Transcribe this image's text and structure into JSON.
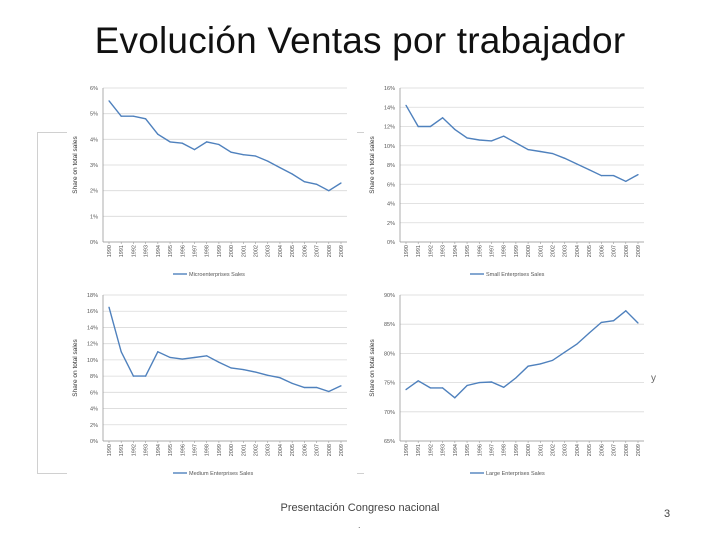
{
  "title": "Evolución Ventas por trabajador",
  "footer": {
    "text": "Presentación Congreso nacional",
    "dot": ".",
    "page_number": "3",
    "edge_mark": "y"
  },
  "colors": {
    "line": "#4f81bd",
    "grid": "#d9d9d9",
    "axis_text": "#555555"
  },
  "chart_data": [
    {
      "type": "line",
      "id": "micro",
      "ylabel": "Share on total sales",
      "legend": "Microenterprises Sales",
      "ylim": [
        0,
        6
      ],
      "yticks": [
        "0%",
        "1%",
        "2%",
        "3%",
        "4%",
        "5%",
        "6%"
      ],
      "x": [
        "1990",
        "1991",
        "1992",
        "1993",
        "1994",
        "1995",
        "1996",
        "1997",
        "1998",
        "1999",
        "2000",
        "2001",
        "2002",
        "2003",
        "2004",
        "2005",
        "2006",
        "2007",
        "2008",
        "2009"
      ],
      "series": [
        {
          "name": "Microenterprises Sales",
          "values": [
            5.5,
            4.9,
            4.9,
            4.8,
            4.2,
            3.9,
            3.85,
            3.6,
            3.9,
            3.8,
            3.5,
            3.4,
            3.35,
            3.15,
            2.9,
            2.65,
            2.35,
            2.25,
            2.0,
            2.3
          ]
        }
      ]
    },
    {
      "type": "line",
      "id": "small",
      "ylabel": "Share on total sales",
      "legend": "Small Enterprises Sales",
      "ylim": [
        0,
        16
      ],
      "yticks": [
        "0%",
        "2%",
        "4%",
        "6%",
        "8%",
        "10%",
        "12%",
        "14%",
        "16%"
      ],
      "x": [
        "1990",
        "1991",
        "1992",
        "1993",
        "1994",
        "1995",
        "1996",
        "1997",
        "1998",
        "1999",
        "2000",
        "2001",
        "2002",
        "2003",
        "2004",
        "2005",
        "2006",
        "2007",
        "2008",
        "2009"
      ],
      "series": [
        {
          "name": "Small Enterprises Sales",
          "values": [
            14.2,
            12.0,
            12.0,
            12.9,
            11.7,
            10.8,
            10.6,
            10.5,
            11.0,
            10.3,
            9.6,
            9.4,
            9.2,
            8.7,
            8.1,
            7.5,
            6.9,
            6.9,
            6.3,
            7.0
          ]
        }
      ]
    },
    {
      "type": "line",
      "id": "medium",
      "ylabel": "Share on total sales",
      "legend": "Medium Enterprises Sales",
      "ylim": [
        0,
        18
      ],
      "yticks": [
        "0%",
        "2%",
        "4%",
        "6%",
        "8%",
        "10%",
        "12%",
        "14%",
        "16%",
        "18%"
      ],
      "x": [
        "1990",
        "1991",
        "1992",
        "1993",
        "1994",
        "1995",
        "1996",
        "1997",
        "1998",
        "1999",
        "2000",
        "2001",
        "2002",
        "2003",
        "2004",
        "2005",
        "2006",
        "2007",
        "2008",
        "2009"
      ],
      "series": [
        {
          "name": "Medium Enterprises Sales",
          "values": [
            16.5,
            11.0,
            8.0,
            8.0,
            11.0,
            10.3,
            10.1,
            10.3,
            10.5,
            9.7,
            9.0,
            8.8,
            8.5,
            8.1,
            7.8,
            7.1,
            6.6,
            6.6,
            6.1,
            6.8
          ]
        }
      ]
    },
    {
      "type": "line",
      "id": "large",
      "ylabel": "Share on total sales",
      "legend": "Large Enterprises Sales",
      "ylim": [
        65,
        90
      ],
      "yticks": [
        "65%",
        "70%",
        "75%",
        "80%",
        "85%",
        "90%"
      ],
      "x": [
        "1990",
        "1991",
        "1992",
        "1993",
        "1994",
        "1995",
        "1996",
        "1997",
        "1998",
        "1999",
        "2000",
        "2001",
        "2002",
        "2003",
        "2004",
        "2005",
        "2006",
        "2007",
        "2008",
        "2009"
      ],
      "series": [
        {
          "name": "Large Enterprises Sales",
          "values": [
            73.8,
            75.3,
            74.1,
            74.1,
            72.4,
            74.5,
            75.0,
            75.1,
            74.2,
            75.8,
            77.8,
            78.2,
            78.8,
            80.2,
            81.6,
            83.5,
            85.3,
            85.6,
            87.3,
            85.2
          ]
        }
      ]
    }
  ]
}
